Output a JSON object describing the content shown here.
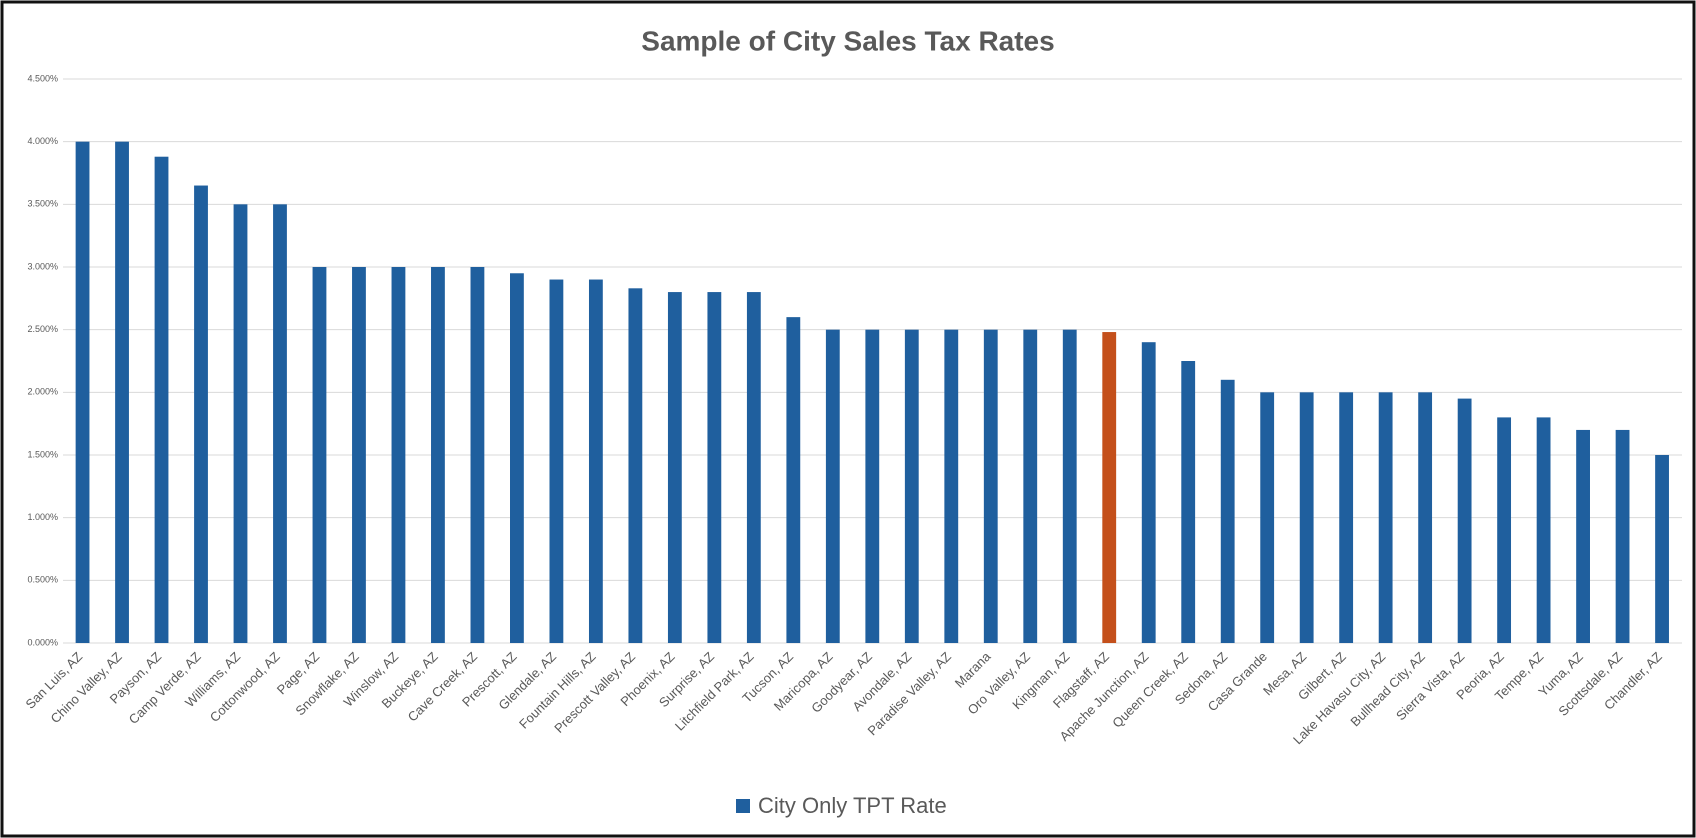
{
  "chart_data": {
    "type": "bar",
    "title": "Sample of City Sales Tax Rates",
    "categories": [
      "San Luis, AZ",
      "Chino Valley, AZ",
      "Payson, AZ",
      "Camp Verde, AZ",
      "Williams, AZ",
      "Cottonwood, AZ",
      "Page, AZ",
      "Snowflake, AZ",
      "Winslow, AZ",
      "Buckeye, AZ",
      "Cave Creek, AZ",
      "Prescott, AZ",
      "Glendale, AZ",
      "Fountain Hills, AZ",
      "Prescott Valley, AZ",
      "Phoenix, AZ",
      "Surprise, AZ",
      "Litchfield Park, AZ",
      "Tucson, AZ",
      "Maricopa, AZ",
      "Goodyear, AZ",
      "Avondale, AZ",
      "Paradise Valley, AZ",
      "Marana",
      "Oro Valley, AZ",
      "Kingman, AZ",
      "Flagstaff, AZ",
      "Apache Junction, AZ",
      "Queen Creek, AZ",
      "Sedona, AZ",
      "Casa Grande",
      "Mesa, AZ",
      "Gilbert, AZ",
      "Lake Havasu City, AZ",
      "Bullhead City, AZ",
      "Sierra Vista, AZ",
      "Peoria, AZ",
      "Tempe, AZ",
      "Yuma, AZ",
      "Scottsdale, AZ",
      "Chandler, AZ"
    ],
    "series": [
      {
        "name": "City Only TPT Rate",
        "color": "#1f5f9e",
        "values": [
          4.0,
          4.0,
          3.88,
          3.65,
          3.5,
          3.5,
          3.0,
          3.0,
          3.0,
          3.0,
          3.0,
          2.95,
          2.9,
          2.9,
          2.83,
          2.8,
          2.8,
          2.8,
          2.6,
          2.5,
          2.5,
          2.5,
          2.5,
          2.5,
          2.5,
          2.5,
          2.481,
          2.4,
          2.25,
          2.1,
          2.0,
          2.0,
          2.0,
          2.0,
          2.0,
          1.95,
          1.8,
          1.8,
          1.7,
          1.7,
          1.5
        ],
        "colors": [
          "#1f5f9e",
          "#1f5f9e",
          "#1f5f9e",
          "#1f5f9e",
          "#1f5f9e",
          "#1f5f9e",
          "#1f5f9e",
          "#1f5f9e",
          "#1f5f9e",
          "#1f5f9e",
          "#1f5f9e",
          "#1f5f9e",
          "#1f5f9e",
          "#1f5f9e",
          "#1f5f9e",
          "#1f5f9e",
          "#1f5f9e",
          "#1f5f9e",
          "#1f5f9e",
          "#1f5f9e",
          "#1f5f9e",
          "#1f5f9e",
          "#1f5f9e",
          "#1f5f9e",
          "#1f5f9e",
          "#1f5f9e",
          "#c4501b",
          "#1f5f9e",
          "#1f5f9e",
          "#1f5f9e",
          "#1f5f9e",
          "#1f5f9e",
          "#1f5f9e",
          "#1f5f9e",
          "#1f5f9e",
          "#1f5f9e",
          "#1f5f9e",
          "#1f5f9e",
          "#1f5f9e",
          "#1f5f9e",
          "#1f5f9e"
        ]
      }
    ],
    "ylim": [
      0,
      4.5
    ],
    "yticks": [
      {
        "value": 0,
        "label": "0.000%"
      },
      {
        "value": 0.5,
        "label": "0.500%"
      },
      {
        "value": 1,
        "label": "1.000%"
      },
      {
        "value": 1.5,
        "label": "1.500%"
      },
      {
        "value": 2,
        "label": "2.000%"
      },
      {
        "value": 2.5,
        "label": "2.500%"
      },
      {
        "value": 3,
        "label": "3.000%"
      },
      {
        "value": 3.5,
        "label": "3.500%"
      },
      {
        "value": 4,
        "label": "4.000%"
      },
      {
        "value": 4.5,
        "label": "4.500%"
      }
    ],
    "grid": true,
    "legend": "bottom"
  }
}
